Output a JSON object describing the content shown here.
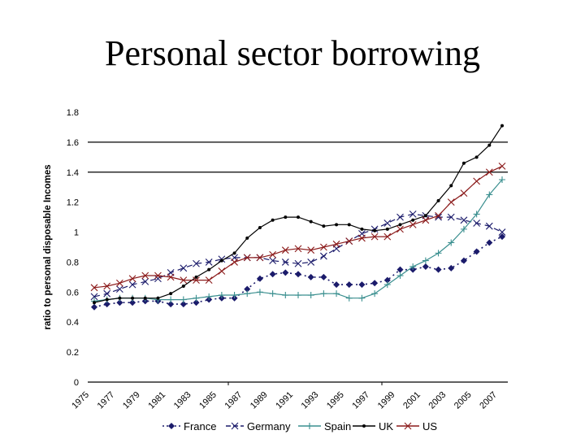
{
  "slide": {
    "title": "Personal sector borrowing"
  },
  "chart_data": {
    "type": "line",
    "title": "Personal sector borrowing",
    "xlabel": "",
    "ylabel": "ratio to personal disposable Incomes",
    "ylim": [
      0,
      1.8
    ],
    "yticks": [
      0,
      0.2,
      0.4,
      0.6,
      0.8,
      1,
      1.2,
      1.4,
      1.6,
      1.8
    ],
    "ytick_labels": [
      "0",
      "0.2",
      "0.4",
      "0.6",
      "0.8",
      "1",
      "1.2",
      "1.4",
      "1.6",
      "1.8"
    ],
    "gridlines": [
      1.4,
      1.6
    ],
    "x": [
      1975,
      1976,
      1977,
      1978,
      1979,
      1980,
      1981,
      1982,
      1983,
      1984,
      1985,
      1986,
      1987,
      1988,
      1989,
      1990,
      1991,
      1992,
      1993,
      1994,
      1995,
      1996,
      1997,
      1998,
      1999,
      2000,
      2001,
      2002,
      2003,
      2004,
      2005,
      2006,
      2007
    ],
    "xtick_labels": [
      "1975",
      "1977",
      "1979",
      "1981",
      "1983",
      "1985",
      "1987",
      "1989",
      "1991",
      "1993",
      "1995",
      "1997",
      "1999",
      "2001",
      "2003",
      "2005",
      "2007"
    ],
    "legend_position": "bottom",
    "series": [
      {
        "name": "France",
        "color": "#1b1b6b",
        "style": "dotted",
        "marker": "diamond",
        "values": [
          0.5,
          0.52,
          0.53,
          0.53,
          0.54,
          0.54,
          0.52,
          0.52,
          0.53,
          0.55,
          0.56,
          0.56,
          0.62,
          0.69,
          0.72,
          0.73,
          0.72,
          0.7,
          0.7,
          0.65,
          0.65,
          0.65,
          0.66,
          0.68,
          0.75,
          0.75,
          0.77,
          0.75,
          0.76,
          0.81,
          0.87,
          0.93,
          0.97
        ]
      },
      {
        "name": "Germany",
        "color": "#1b1b6b",
        "style": "dashed",
        "marker": "x",
        "values": [
          0.57,
          0.59,
          0.62,
          0.65,
          0.67,
          0.69,
          0.73,
          0.76,
          0.79,
          0.8,
          0.82,
          0.83,
          0.83,
          0.83,
          0.81,
          0.8,
          0.79,
          0.8,
          0.84,
          0.89,
          0.94,
          0.99,
          1.02,
          1.06,
          1.1,
          1.12,
          1.11,
          1.1,
          1.1,
          1.08,
          1.06,
          1.04,
          1.0
        ]
      },
      {
        "name": "Spain",
        "color": "#3a8f8f",
        "style": "solid",
        "marker": "plus",
        "values": [
          0.54,
          0.55,
          0.56,
          0.56,
          0.56,
          0.55,
          0.55,
          0.55,
          0.56,
          0.57,
          0.58,
          0.58,
          0.59,
          0.6,
          0.59,
          0.58,
          0.58,
          0.58,
          0.59,
          0.59,
          0.56,
          0.56,
          0.59,
          0.65,
          0.71,
          0.77,
          0.81,
          0.86,
          0.93,
          1.02,
          1.12,
          1.25,
          1.35
        ]
      },
      {
        "name": "UK",
        "color": "#000000",
        "style": "solid",
        "marker": "dot",
        "values": [
          0.53,
          0.55,
          0.56,
          0.56,
          0.56,
          0.56,
          0.59,
          0.64,
          0.7,
          0.75,
          0.81,
          0.86,
          0.96,
          1.03,
          1.08,
          1.1,
          1.1,
          1.07,
          1.04,
          1.05,
          1.05,
          1.02,
          1.01,
          1.02,
          1.05,
          1.08,
          1.11,
          1.21,
          1.31,
          1.46,
          1.5,
          1.58,
          1.71
        ]
      },
      {
        "name": "US",
        "color": "#8b1a1a",
        "style": "solid",
        "marker": "x",
        "values": [
          0.63,
          0.64,
          0.66,
          0.69,
          0.71,
          0.71,
          0.7,
          0.68,
          0.68,
          0.68,
          0.74,
          0.8,
          0.83,
          0.83,
          0.85,
          0.88,
          0.89,
          0.88,
          0.9,
          0.92,
          0.94,
          0.96,
          0.97,
          0.97,
          1.02,
          1.05,
          1.08,
          1.11,
          1.2,
          1.26,
          1.34,
          1.4,
          1.44
        ]
      }
    ]
  }
}
